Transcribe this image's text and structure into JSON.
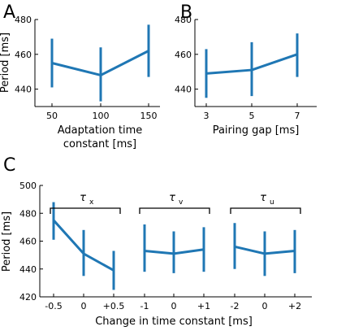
{
  "chart_data": [
    {
      "panel": "A",
      "type": "line",
      "x": [
        50,
        100,
        150
      ],
      "x_tick_labels": [
        "50",
        "100",
        "150"
      ],
      "values": [
        455,
        448,
        462
      ],
      "err_low": [
        441,
        433,
        447
      ],
      "err_high": [
        469,
        464,
        477
      ],
      "xlabel": [
        "Adaptation time",
        "constant [ms]"
      ],
      "ylabel": "Period [ms]",
      "ylim": [
        430,
        480
      ],
      "yticks": [
        440,
        460,
        480
      ]
    },
    {
      "panel": "B",
      "type": "line",
      "x": [
        3,
        5,
        7
      ],
      "x_tick_labels": [
        "3",
        "5",
        "7"
      ],
      "values": [
        449,
        451,
        460
      ],
      "err_low": [
        435,
        436,
        447
      ],
      "err_high": [
        463,
        467,
        472
      ],
      "xlabel": "Pairing gap [ms]",
      "ylabel": "",
      "ylim": [
        430,
        480
      ],
      "yticks": [
        440,
        460,
        480
      ]
    },
    {
      "panel": "C",
      "type": "line",
      "xlabel": "Change in time constant [ms]",
      "ylabel": "Period [ms]",
      "ylim": [
        420,
        500
      ],
      "yticks": [
        420,
        440,
        460,
        480,
        500
      ],
      "groups": [
        {
          "label": "τ",
          "subscript": "x",
          "x_tick_labels": [
            "-0.5",
            "0",
            "+0.5"
          ],
          "values": [
            475,
            451,
            439
          ],
          "err_low": [
            461,
            435,
            425
          ],
          "err_high": [
            488,
            468,
            453
          ]
        },
        {
          "label": "τ",
          "subscript": "v",
          "x_tick_labels": [
            "-1",
            "0",
            "+1"
          ],
          "values": [
            453,
            451,
            454
          ],
          "err_low": [
            438,
            437,
            438
          ],
          "err_high": [
            472,
            467,
            470
          ]
        },
        {
          "label": "τ",
          "subscript": "u",
          "x_tick_labels": [
            "-2",
            "0",
            "+2"
          ],
          "values": [
            456,
            451,
            453
          ],
          "err_low": [
            440,
            435,
            437
          ],
          "err_high": [
            473,
            467,
            468
          ]
        }
      ]
    }
  ]
}
